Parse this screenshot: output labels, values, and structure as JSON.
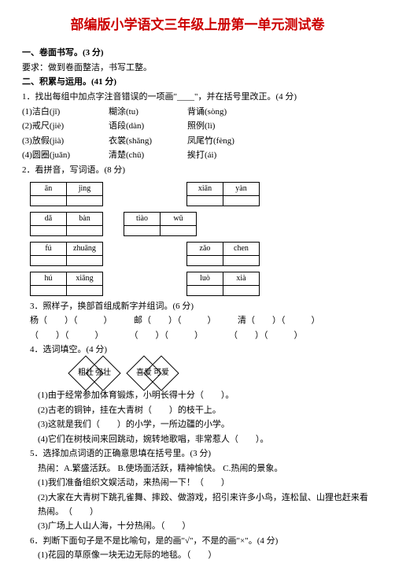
{
  "title": {
    "text": "部编版小学语文三年级上册第一单元测试卷",
    "color": "#cc0000"
  },
  "s1": {
    "heading": "一、卷面书写。(3 分)",
    "req": "要求：做到卷面整洁，书写工整。"
  },
  "s2": {
    "heading": "二、积累与运用。(41 分)",
    "q1": {
      "text": "1．找出每组中加点字注音错误的一项画\"____\"，并在括号里改正。(4 分)",
      "rows": [
        [
          "(1)洁白(jī)",
          "糊涂(tu)",
          "背诵(sòng)"
        ],
        [
          "(2)戒尺(jiè)",
          "语段(dàn)",
          "照例(lì)"
        ],
        [
          "(3)放假(jià)",
          "衣裳(shǎng)",
          "凤尾竹(fèng)"
        ],
        [
          "(4)圆圈(juǎn)",
          "清楚(chǔ)",
          "挨打(ái)"
        ]
      ]
    },
    "q2": {
      "text": "2．看拼音，写词语。(8 分)",
      "grids": [
        [
          [
            "ān",
            "jìng"
          ],
          [
            "xiān",
            "yàn"
          ]
        ],
        [
          [
            "dǎ",
            "bàn"
          ],
          [
            "tiào",
            "wǔ"
          ]
        ],
        [
          [
            "fú",
            "zhuāng"
          ],
          [
            "zǎo",
            "chen"
          ]
        ],
        [
          [
            "hú",
            "xiāng"
          ],
          [
            "luò",
            "xià"
          ]
        ]
      ]
    },
    "q3": {
      "text": "3．照样子，换部首组成新字并组词。(6 分)",
      "items": [
        "杨（　　）（　　　）　　　邮（　　）（　　　）　　　清（　　）（　　　）",
        "（　　）（　　　）　　　　（　　）（　　　）　　　　（　　）（　　　）"
      ]
    },
    "q4": {
      "text": "4．选词填空。(4 分)",
      "pairs": [
        [
          "粗壮",
          "强壮"
        ],
        [
          "喜爱",
          "可爱"
        ]
      ],
      "items": [
        "(1)由于经常参加体育锻炼，小明长得十分（　　）。",
        "(2)古老的铜钟，挂在大青树（　　）的枝干上。",
        "(3)这就是我们（　　）的小学，一所边疆的小学。",
        "(4)它们在树枝间来回跳动，婉转地歌唱，非常惹人（　　）。"
      ]
    },
    "q5": {
      "text": "5．选择加点词语的正确意思填在括号里。(3 分)",
      "choices": "热闹：A.繁盛活跃。 B.使场面活跃，精神愉快。 C.热闹的景象。",
      "items": [
        "(1)我们准备组织文娱活动，来热闹一下！（　　）",
        "(2)大家在大青树下跳孔雀舞、摔跤、做游戏，招引来许多小鸟，连松鼠、山狸也赶来看热闹。　（　　）",
        "(3)广场上人山人海，十分热闹。（　　）"
      ]
    },
    "q6": {
      "text": "6．判断下面句子是不是比喻句，是的画\"√\"，不是的画\"×\"。(4 分)",
      "items": [
        "(1)花园的草原像一块无边无际的地毯。（　　）"
      ]
    }
  }
}
